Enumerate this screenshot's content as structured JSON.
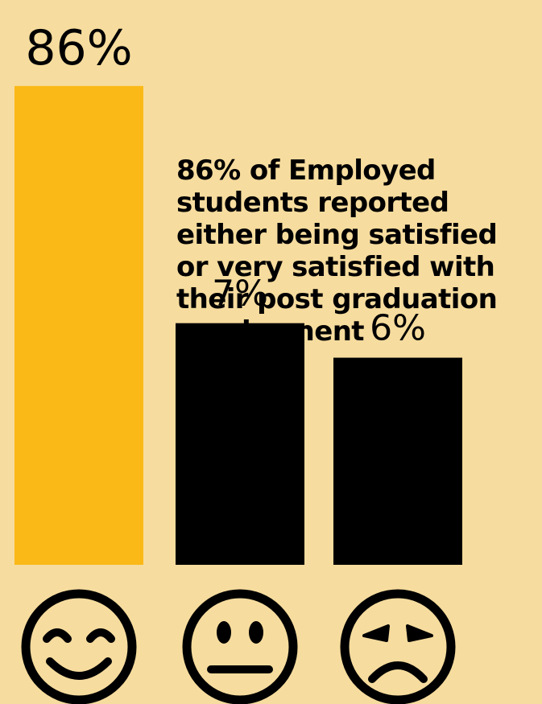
{
  "chart_data": {
    "type": "bar",
    "categories": [
      "satisfied",
      "neutral",
      "dissatisfied"
    ],
    "values": [
      86,
      7,
      6
    ],
    "value_labels": [
      "86%",
      "7%",
      "6%"
    ],
    "category_icons": [
      "smiling-face-icon",
      "neutral-face-icon",
      "sad-face-icon"
    ],
    "ylim": [
      0,
      100
    ],
    "grid": false,
    "legend": "none",
    "colors": [
      "#fbb917",
      "#000000",
      "#000000"
    ]
  },
  "caption_lines": [
    "86% of Employed",
    "students reported",
    "either being satisfied",
    "or very satisfied with",
    "their post graduation",
    "employment"
  ],
  "colors": {
    "background": "#f6dc9e",
    "highlight": "#fbb917",
    "ink": "#000000"
  }
}
